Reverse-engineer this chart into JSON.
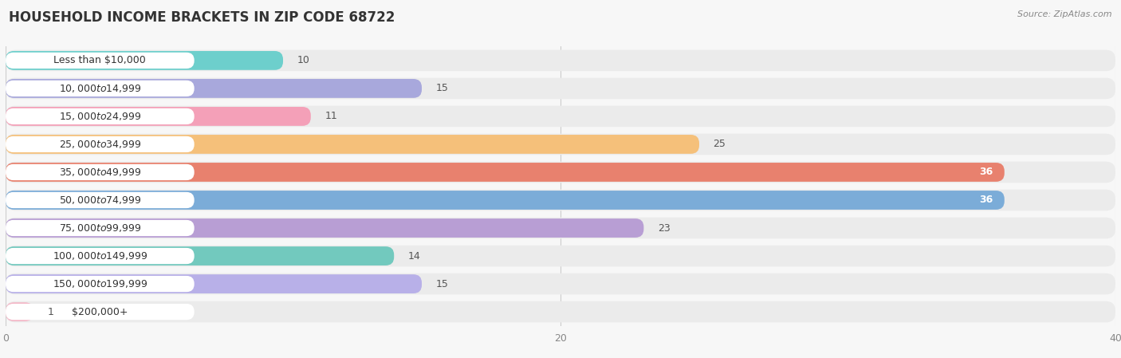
{
  "title": "HOUSEHOLD INCOME BRACKETS IN ZIP CODE 68722",
  "source": "Source: ZipAtlas.com",
  "categories": [
    "Less than $10,000",
    "$10,000 to $14,999",
    "$15,000 to $24,999",
    "$25,000 to $34,999",
    "$35,000 to $49,999",
    "$50,000 to $74,999",
    "$75,000 to $99,999",
    "$100,000 to $149,999",
    "$150,000 to $199,999",
    "$200,000+"
  ],
  "values": [
    10,
    15,
    11,
    25,
    36,
    36,
    23,
    14,
    15,
    1
  ],
  "bar_colors": [
    "#6DCFCC",
    "#A8A8DC",
    "#F4A0B8",
    "#F5C07A",
    "#E8816E",
    "#7BACD8",
    "#B89ED4",
    "#72C9BE",
    "#B8B0E8",
    "#F4B8C8"
  ],
  "xlim": [
    0,
    40
  ],
  "background_color": "#f7f7f7",
  "bar_bg_color": "#ebebeb",
  "row_bg_color": "#f0f0f0",
  "title_fontsize": 12,
  "label_fontsize": 9,
  "value_fontsize": 9,
  "bar_height": 0.68,
  "label_text_color": "#333333",
  "value_inside_color": "#ffffff",
  "value_outside_color": "#555555",
  "value_threshold": 28,
  "label_box_color": "#ffffff",
  "title_color": "#333333"
}
